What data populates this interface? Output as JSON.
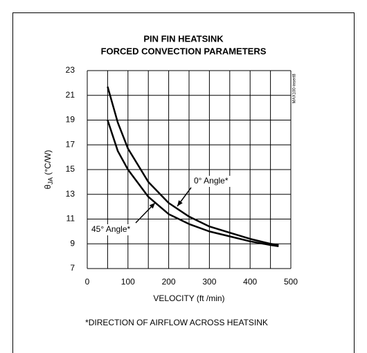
{
  "chart_data": {
    "type": "line",
    "title": [
      "PIN FIN HEATSINK",
      "FORCED CONVECTION PARAMETERS"
    ],
    "x_label": "VELOCITY (ft /min)",
    "y_label": [
      "θ",
      "JA",
      " (°C/W)"
    ],
    "footnote": "*DIRECTION OF AIRFLOW ACROSS HEATSINK",
    "side_note": "MAX100-insert8",
    "x": [
      50,
      75,
      100,
      150,
      200,
      250,
      300,
      350,
      400,
      450,
      470
    ],
    "series": [
      {
        "name": "0° Angle*",
        "color": "#000000",
        "values": [
          21.7,
          18.8,
          16.7,
          14.0,
          12.3,
          11.2,
          10.4,
          9.9,
          9.4,
          9.0,
          8.9
        ]
      },
      {
        "name": "45° Angle*",
        "color": "#000000",
        "values": [
          19.0,
          16.5,
          15.0,
          12.8,
          11.4,
          10.6,
          10.0,
          9.6,
          9.2,
          8.9,
          8.8
        ]
      }
    ],
    "xlim": [
      0,
      500
    ],
    "xticks": [
      0,
      100,
      200,
      300,
      400,
      500
    ],
    "xminor": [
      50,
      150,
      250,
      350,
      450
    ],
    "ylim": [
      7,
      23
    ],
    "yticks": [
      7,
      9,
      11,
      13,
      15,
      17,
      19,
      21,
      23
    ],
    "grid": true
  }
}
